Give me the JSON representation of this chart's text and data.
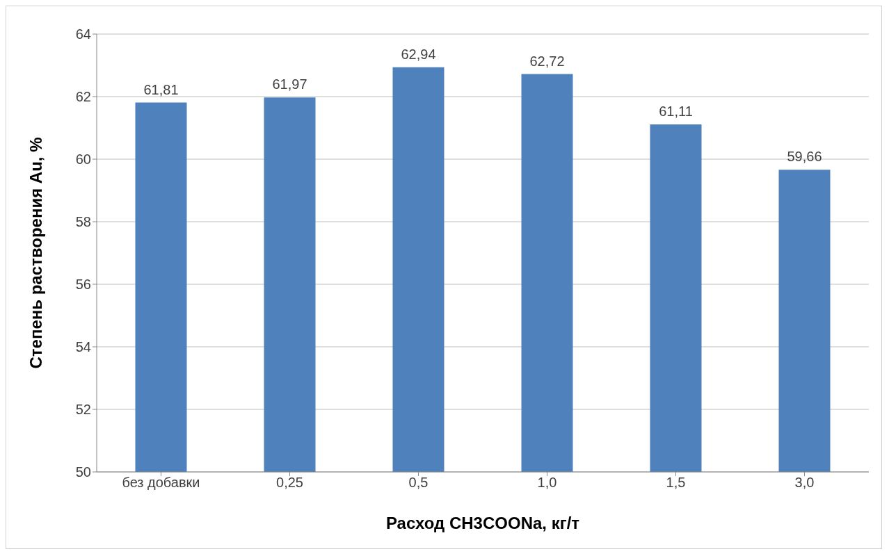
{
  "chart_data": {
    "type": "bar",
    "xlabel": "Расход CH3COONa, кг/т",
    "ylabel": "Степень растворения Au, %",
    "categories": [
      "без добавки",
      "0,25",
      "0,5",
      "1,0",
      "1,5",
      "3,0"
    ],
    "series": [
      {
        "color": "#4f81bd",
        "values": [
          61.81,
          61.97,
          62.94,
          62.72,
          61.11,
          59.66
        ],
        "value_labels": [
          "61,81",
          "61,97",
          "62,94",
          "62,72",
          "61,11",
          "59,66"
        ]
      }
    ],
    "ylim": [
      50,
      64
    ],
    "yticks": [
      50,
      52,
      54,
      56,
      58,
      60,
      62,
      64
    ],
    "grid": "y",
    "legend": false
  }
}
